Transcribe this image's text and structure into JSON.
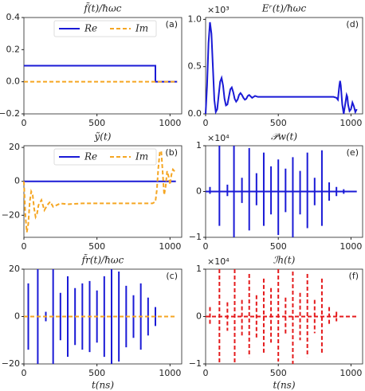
{
  "chart_data": [
    {
      "type": "line",
      "title": "f̃(t)/ħωc",
      "panel_label": "(a)",
      "legend": true,
      "x": [
        0,
        900,
        900,
        1050
      ],
      "xlim": [
        0,
        1080
      ],
      "xticks": [
        0,
        500,
        1000
      ],
      "ylim": [
        -0.2,
        0.4
      ],
      "yticks": [
        {
          "value": -0.2,
          "label": "−0.2"
        },
        {
          "value": 0,
          "label": "0.0"
        },
        {
          "value": 0.2,
          "label": "0.2"
        },
        {
          "value": 0.4,
          "label": "0.4"
        }
      ],
      "series": [
        {
          "name": "Re",
          "color": "#1a1ad6",
          "dash": false,
          "values": [
            0.1,
            0.1,
            0,
            0
          ]
        },
        {
          "name": "Im",
          "color": "#f5a623",
          "dash": true,
          "values": [
            0,
            0,
            0,
            0
          ]
        }
      ]
    },
    {
      "type": "line",
      "title": "ỹ(t)",
      "panel_label": "(b)",
      "legend": true,
      "x": [
        0,
        10,
        20,
        30,
        40,
        50,
        60,
        70,
        80,
        90,
        100,
        120,
        140,
        160,
        180,
        200,
        250,
        300,
        400,
        500,
        600,
        700,
        800,
        880,
        900,
        910,
        920,
        930,
        940,
        950,
        960,
        970,
        980,
        990,
        1000,
        1010,
        1020,
        1040
      ],
      "xlim": [
        0,
        1080
      ],
      "xticks": [
        0,
        500,
        1000
      ],
      "ylim": [
        -33,
        21
      ],
      "yticks": [
        {
          "value": -20,
          "label": "−20"
        },
        0,
        20
      ],
      "series": [
        {
          "name": "Re",
          "color": "#1a1ad6",
          "dash": false,
          "x": [
            0,
            1040
          ],
          "values": [
            0,
            0
          ]
        },
        {
          "name": "Im",
          "color": "#f5a623",
          "dash": true,
          "values": [
            0,
            -20,
            -30,
            -25,
            -12,
            -6,
            -8,
            -16,
            -21,
            -19,
            -14,
            -11,
            -17,
            -14,
            -12,
            -15,
            -13,
            -13.5,
            -13,
            -13,
            -13,
            -13,
            -13,
            -13,
            -12,
            -5,
            8,
            17,
            18,
            5,
            -8,
            -3,
            6,
            3,
            -2,
            4,
            7,
            5
          ]
        }
      ]
    },
    {
      "type": "spikes",
      "title": "f̃r(t)/ħωc",
      "panel_label": "(c)",
      "xlabel": "t(ns)",
      "x": [
        30,
        95,
        150,
        200,
        250,
        300,
        350,
        400,
        450,
        500,
        550,
        600,
        650,
        700,
        750,
        800,
        850,
        900
      ],
      "xlim": [
        0,
        1080
      ],
      "xticks": [
        0,
        500,
        1000
      ],
      "ylim": [
        -20,
        20
      ],
      "yticks": [
        {
          "value": -20,
          "label": "−20"
        },
        0,
        20
      ],
      "series": [
        {
          "type": "spikes",
          "color": "#1a1ad6",
          "dash": false,
          "values": [
            14,
            20,
            2,
            20,
            10,
            17,
            12,
            14,
            15,
            11,
            17,
            20,
            19,
            13,
            9,
            14,
            8,
            4
          ],
          "lows": [
            -14,
            -20,
            -2,
            -20,
            -10,
            -17,
            -12,
            -14,
            -15,
            -11,
            -17,
            -20,
            -19,
            -13,
            -9,
            -14,
            -8,
            -4
          ]
        },
        {
          "type": "line",
          "color": "#f5a623",
          "dash": true,
          "x": [
            0,
            1040
          ],
          "values": [
            0,
            0
          ]
        }
      ]
    },
    {
      "type": "line",
      "title": "Eʳ(t)/ħωc",
      "panel_label": "(d)",
      "scale_label": "×10³",
      "x": [
        0,
        10,
        20,
        30,
        40,
        50,
        60,
        70,
        80,
        90,
        100,
        110,
        120,
        130,
        140,
        150,
        160,
        170,
        180,
        190,
        200,
        210,
        220,
        230,
        240,
        250,
        260,
        270,
        280,
        290,
        300,
        320,
        340,
        360,
        400,
        500,
        600,
        700,
        800,
        880,
        900,
        910,
        920,
        925,
        930,
        940,
        950,
        960,
        970,
        975,
        980,
        990,
        1000,
        1010,
        1020,
        1030,
        1040
      ],
      "xlim": [
        0,
        1080
      ],
      "xticks": [
        0,
        500,
        1000
      ],
      "ylim": [
        0,
        1.02
      ],
      "yticks": [
        {
          "value": 0,
          "label": "0.0"
        },
        0.5,
        {
          "value": 1,
          "label": "1.0"
        }
      ],
      "series": [
        {
          "color": "#1a1ad6",
          "dash": false,
          "values": [
            0,
            0.3,
            0.75,
            0.97,
            0.85,
            0.5,
            0.15,
            0.02,
            0.05,
            0.2,
            0.34,
            0.38,
            0.3,
            0.16,
            0.09,
            0.1,
            0.18,
            0.26,
            0.28,
            0.23,
            0.16,
            0.13,
            0.15,
            0.2,
            0.22,
            0.2,
            0.17,
            0.15,
            0.16,
            0.19,
            0.2,
            0.17,
            0.19,
            0.18,
            0.18,
            0.18,
            0.18,
            0.18,
            0.18,
            0.18,
            0.17,
            0.15,
            0.3,
            0.35,
            0.3,
            0.1,
            0,
            0.1,
            0.2,
            0.18,
            0.1,
            0.03,
            0.05,
            0.12,
            0.08,
            0.02,
            0.05
          ]
        }
      ]
    },
    {
      "type": "spikes",
      "title": "𝒫w(t)",
      "panel_label": "(e)",
      "scale_label": "×10⁴",
      "x": [
        30,
        95,
        150,
        195,
        250,
        300,
        350,
        400,
        450,
        500,
        550,
        600,
        650,
        700,
        750,
        800,
        850,
        900,
        950
      ],
      "xlim": [
        0,
        1080
      ],
      "xticks": [
        0,
        500,
        1000
      ],
      "ylim": [
        -1,
        1
      ],
      "yticks": [
        {
          "value": -1,
          "label": "−1"
        },
        0,
        1
      ],
      "series": [
        {
          "type": "spikes",
          "color": "#1a1ad6",
          "dash": false,
          "values": [
            0.1,
            1,
            0.15,
            1,
            0.3,
            0.95,
            0.4,
            0.85,
            0.55,
            0.7,
            0.5,
            0.75,
            0.45,
            0.85,
            0.3,
            0.9,
            0.2,
            0.1,
            0.05
          ],
          "lows": [
            -0.05,
            -0.75,
            -0.1,
            -1,
            -0.25,
            -0.85,
            -0.3,
            -0.75,
            -0.5,
            -0.95,
            -0.45,
            -1,
            -0.5,
            -0.8,
            -0.3,
            -0.75,
            -0.2,
            -0.1,
            -0.05
          ]
        },
        {
          "type": "line",
          "color": "#1a1ad6",
          "dash": false,
          "x": [
            0,
            1040
          ],
          "values": [
            0,
            0
          ]
        }
      ]
    },
    {
      "type": "spikes",
      "title": "ℐh(t)",
      "panel_label": "(f)",
      "scale_label": "×10⁴",
      "xlabel": "t(ns)",
      "x": [
        30,
        95,
        150,
        200,
        250,
        300,
        350,
        400,
        450,
        500,
        550,
        600,
        650,
        700,
        750,
        800,
        850,
        900
      ],
      "xlim": [
        0,
        1080
      ],
      "xticks": [
        0,
        500,
        1000
      ],
      "ylim": [
        -1,
        1
      ],
      "yticks": [
        {
          "value": -1,
          "label": "−1"
        },
        0,
        1
      ],
      "series": [
        {
          "type": "spikes",
          "color": "#e41a1c",
          "dash": true,
          "values": [
            0.2,
            1,
            0.3,
            1,
            0.35,
            0.9,
            0.45,
            0.8,
            0.6,
            1,
            0.4,
            0.95,
            0.5,
            0.9,
            0.35,
            0.8,
            0.2,
            0.1
          ],
          "lows": [
            -0.2,
            -1,
            -0.3,
            -1,
            -0.4,
            -0.85,
            -0.45,
            -0.8,
            -0.55,
            -0.95,
            -0.4,
            -1,
            -0.5,
            -0.85,
            -0.35,
            -0.8,
            -0.2,
            -0.1
          ]
        },
        {
          "type": "line",
          "color": "#e41a1c",
          "dash": true,
          "x": [
            0,
            1040
          ],
          "values": [
            0,
            0
          ]
        }
      ]
    }
  ]
}
